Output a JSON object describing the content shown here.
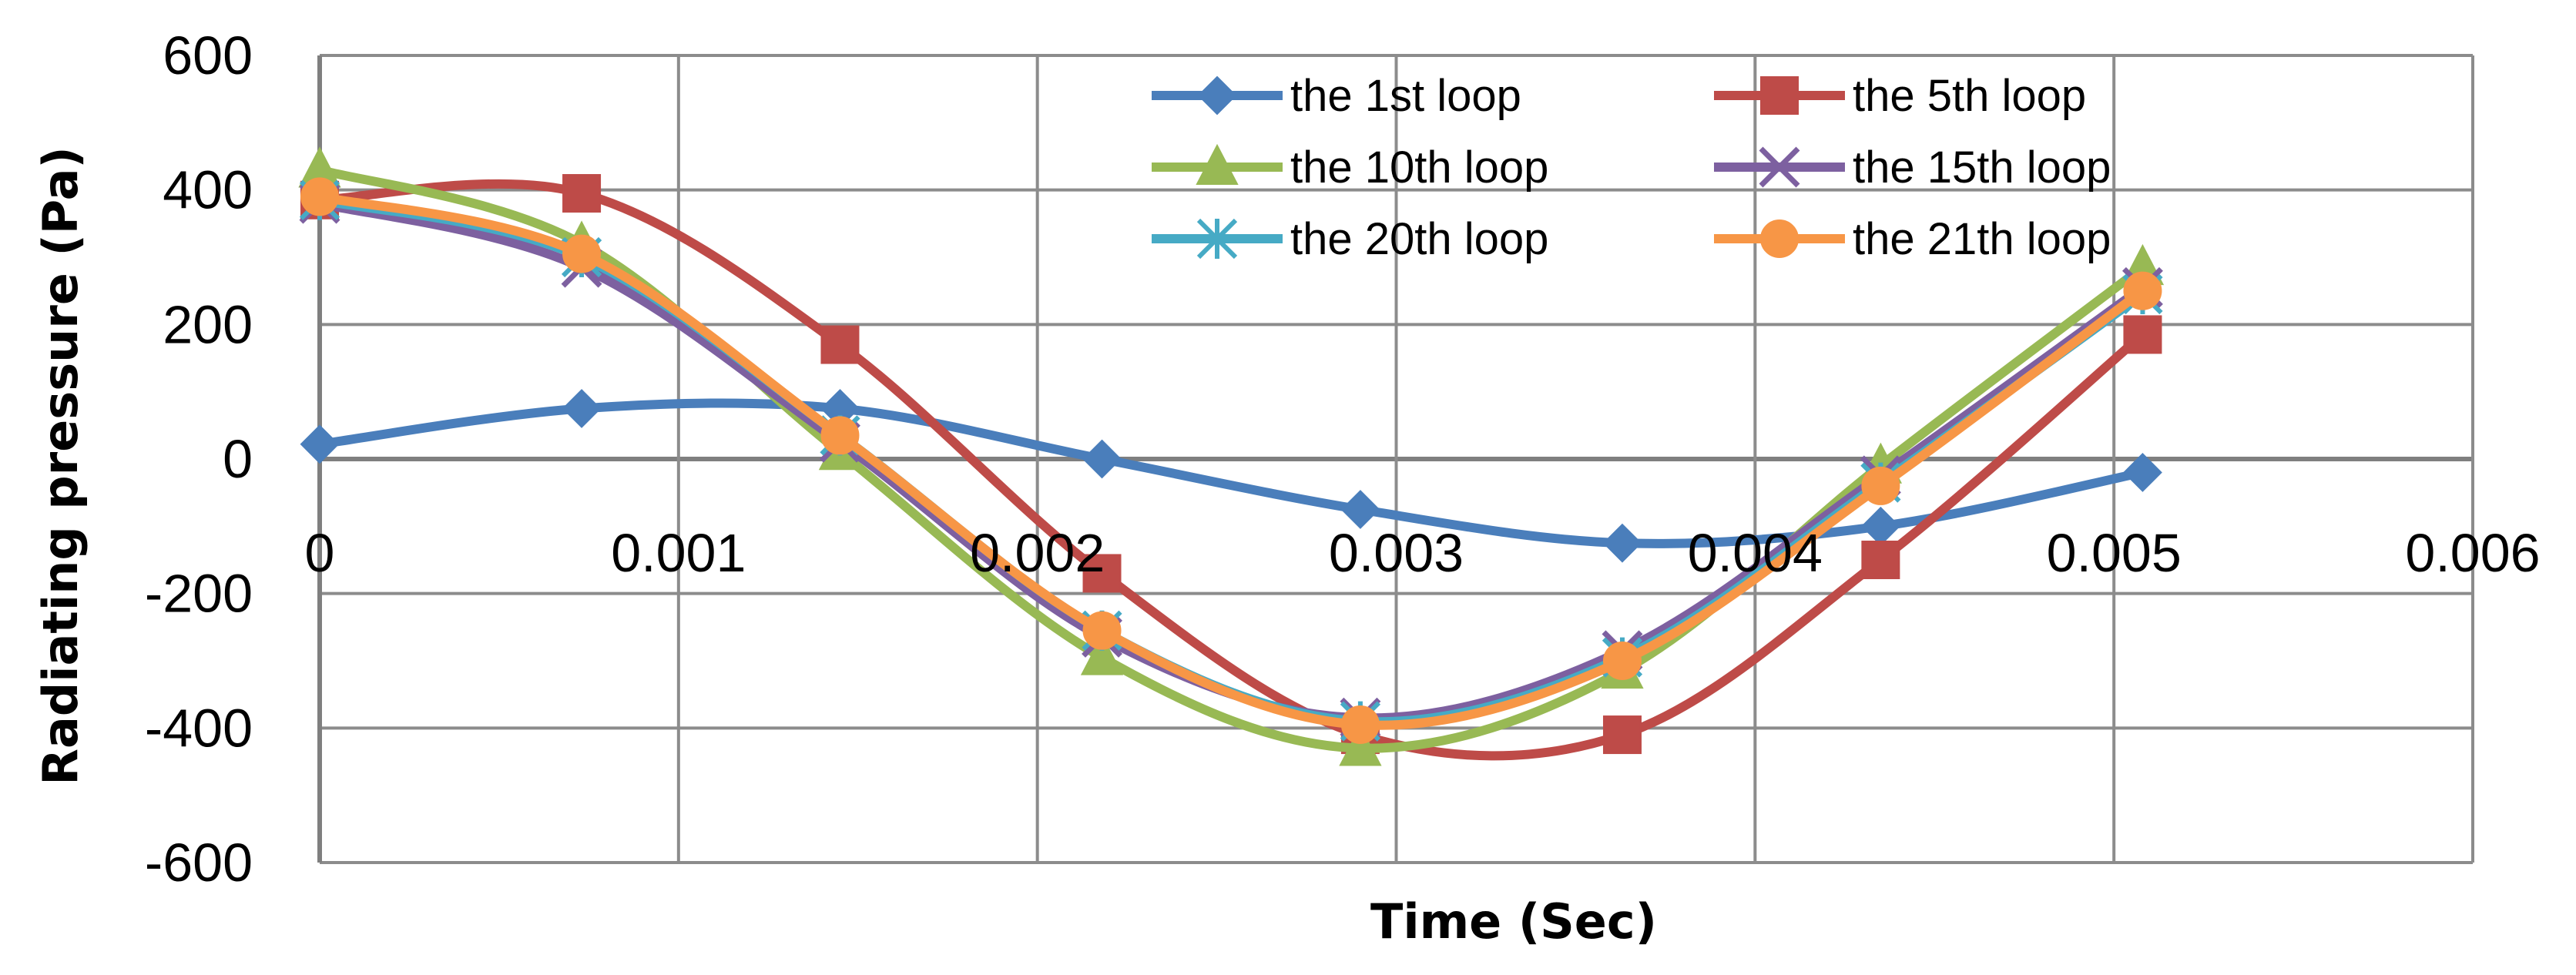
{
  "chart_data": {
    "type": "line",
    "smooth": true,
    "xlabel": "Time (Sec)",
    "ylabel": "Radiating pressure  (Pa)",
    "xlim": [
      0,
      0.006
    ],
    "ylim": [
      -600,
      600
    ],
    "x_ticks": [
      0,
      0.001,
      0.002,
      0.003,
      0.004,
      0.005,
      0.006
    ],
    "x_tick_labels": [
      "0",
      "0.001",
      "0.002",
      "0.003",
      "0.004",
      "0.005",
      "0.006"
    ],
    "y_ticks": [
      600,
      400,
      200,
      0,
      -200,
      -400,
      -600
    ],
    "y_tick_labels": [
      "600",
      "400",
      "200",
      "0",
      "-200",
      "-400",
      "-600"
    ],
    "grid": true,
    "legend_position": "top-right",
    "x": [
      0,
      0.00073,
      0.00145,
      0.00218,
      0.0029,
      0.00363,
      0.00435,
      0.00508
    ],
    "series": [
      {
        "name": "the 1st loop",
        "color": "#4a7ebb",
        "marker": "diamond",
        "values": [
          22,
          75,
          75,
          0,
          -75,
          -125,
          -100,
          -20
        ]
      },
      {
        "name": "the 5th loop",
        "color": "#be4b48",
        "marker": "square",
        "values": [
          385,
          395,
          170,
          -170,
          -410,
          -410,
          -150,
          185
        ]
      },
      {
        "name": "the 10th loop",
        "color": "#98b954",
        "marker": "triangle",
        "values": [
          430,
          320,
          10,
          -295,
          -430,
          -315,
          -10,
          285
        ]
      },
      {
        "name": "the 15th loop",
        "color": "#7d60a0",
        "marker": "x",
        "values": [
          380,
          285,
          25,
          -265,
          -385,
          -285,
          -25,
          255
        ]
      },
      {
        "name": "the 20th loop",
        "color": "#46aac5",
        "marker": "star",
        "values": [
          385,
          300,
          35,
          -255,
          -390,
          -295,
          -35,
          245
        ]
      },
      {
        "name": "the 21th loop",
        "color": "#f79646",
        "marker": "circle",
        "values": [
          390,
          305,
          35,
          -255,
          -395,
          -300,
          -40,
          250
        ]
      }
    ]
  }
}
